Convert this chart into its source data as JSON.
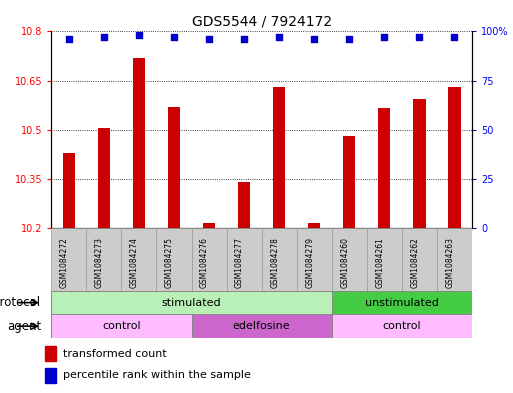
{
  "title": "GDS5544 / 7924172",
  "samples": [
    "GSM1084272",
    "GSM1084273",
    "GSM1084274",
    "GSM1084275",
    "GSM1084276",
    "GSM1084277",
    "GSM1084278",
    "GSM1084279",
    "GSM1084260",
    "GSM1084261",
    "GSM1084262",
    "GSM1084263"
  ],
  "bar_values": [
    10.43,
    10.505,
    10.72,
    10.57,
    10.215,
    10.34,
    10.63,
    10.215,
    10.48,
    10.565,
    10.595,
    10.63
  ],
  "percentile_values": [
    96,
    97,
    98,
    97,
    96,
    96,
    97,
    96,
    96,
    97,
    97,
    97
  ],
  "ylim_left": [
    10.2,
    10.8
  ],
  "ylim_right": [
    0,
    100
  ],
  "yticks_left": [
    10.2,
    10.35,
    10.5,
    10.65,
    10.8
  ],
  "yticks_right": [
    0,
    25,
    50,
    75,
    100
  ],
  "ytick_labels_left": [
    "10.2",
    "10.35",
    "10.5",
    "10.65",
    "10.8"
  ],
  "ytick_labels_right": [
    "0",
    "25",
    "50",
    "75",
    "100%"
  ],
  "bar_color": "#cc0000",
  "percentile_color": "#0000cc",
  "grid_color": "#000000",
  "xtick_bg_color": "#cccccc",
  "protocol_row": [
    {
      "label": "stimulated",
      "start": 0,
      "end": 8,
      "color": "#b8f0b8",
      "border_color": "#888888"
    },
    {
      "label": "unstimulated",
      "start": 8,
      "end": 12,
      "color": "#44cc44",
      "border_color": "#888888"
    }
  ],
  "agent_row": [
    {
      "label": "control",
      "start": 0,
      "end": 4,
      "color": "#ffbbff",
      "border_color": "#888888"
    },
    {
      "label": "edelfosine",
      "start": 4,
      "end": 8,
      "color": "#cc66cc",
      "border_color": "#888888"
    },
    {
      "label": "control",
      "start": 8,
      "end": 12,
      "color": "#ffbbff",
      "border_color": "#888888"
    }
  ],
  "legend_bar_label": "transformed count",
  "legend_pct_label": "percentile rank within the sample",
  "xlabel_protocol": "protocol",
  "xlabel_agent": "agent",
  "title_fontsize": 10,
  "tick_fontsize": 7,
  "label_fontsize": 8.5,
  "bar_width": 0.35
}
